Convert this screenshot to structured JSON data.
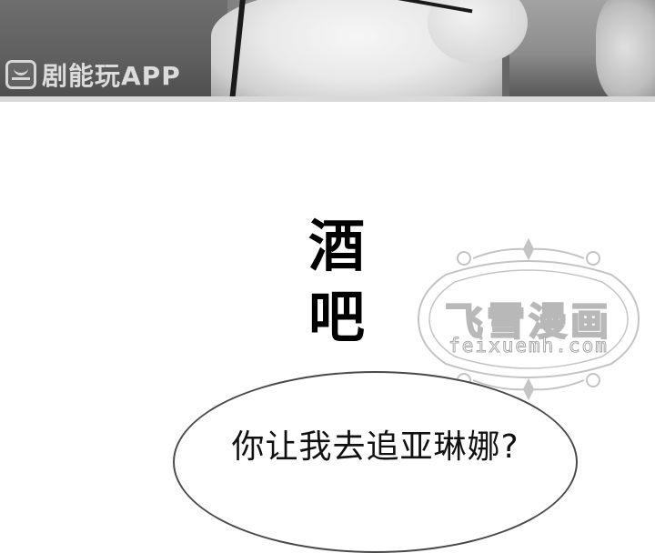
{
  "app_logo": {
    "icon": "smiley-tv-icon",
    "text": "剧能玩APP"
  },
  "sound_effect": {
    "line1": "酒",
    "line2": "吧"
  },
  "watermark": {
    "title": "飞雪漫画",
    "url": "feixuemh.com",
    "color": "#b8b8b8"
  },
  "speech_bubble": {
    "text": "你让我去追亚琳娜?"
  }
}
